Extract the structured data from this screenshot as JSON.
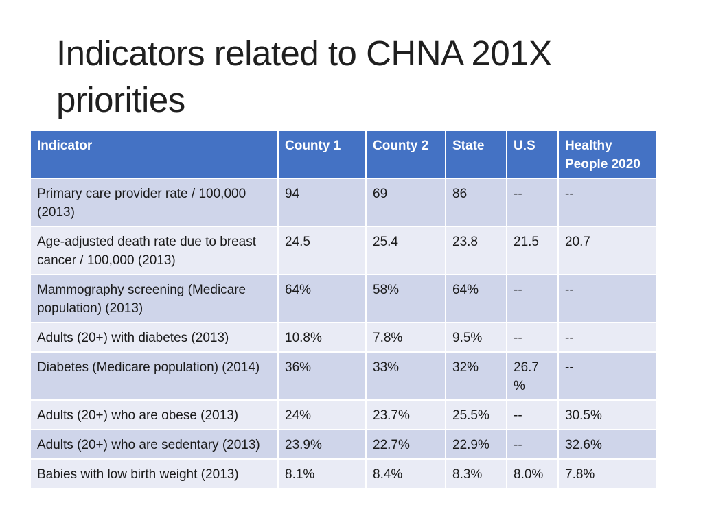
{
  "slide": {
    "title": "Indicators related to CHNA 201X priorities"
  },
  "table": {
    "headers": [
      "Indicator",
      "County 1",
      "County 2",
      "State",
      "U.S",
      "Healthy People 2020"
    ],
    "rows": [
      [
        "Primary care provider rate / 100,000 (2013)",
        "94",
        "69",
        "86",
        "--",
        "--"
      ],
      [
        "Age-adjusted death rate due to breast cancer / 100,000 (2013)",
        "24.5",
        "25.4",
        "23.8",
        "21.5",
        "20.7"
      ],
      [
        "Mammography screening (Medicare population) (2013)",
        "64%",
        "58%",
        "64%",
        "--",
        "--"
      ],
      [
        "Adults (20+) with diabetes (2013)",
        "10.8%",
        "7.8%",
        "9.5%",
        "--",
        "--"
      ],
      [
        "Diabetes (Medicare population) (2014)",
        "36%",
        "33%",
        "32%",
        "26.7 %",
        "--"
      ],
      [
        "Adults (20+) who are obese (2013)",
        "24%",
        "23.7%",
        "25.5%",
        "--",
        "30.5%"
      ],
      [
        "Adults (20+) who are sedentary (2013)",
        "23.9%",
        "22.7%",
        "22.9%",
        "--",
        "32.6%"
      ],
      [
        "Babies with low birth weight (2013)",
        "8.1%",
        "8.4%",
        "8.3%",
        "8.0%",
        "7.8%"
      ]
    ]
  },
  "colors": {
    "header_bg": "#4472c4",
    "row_odd": "#cfd5ea",
    "row_even": "#e9ebf5"
  }
}
